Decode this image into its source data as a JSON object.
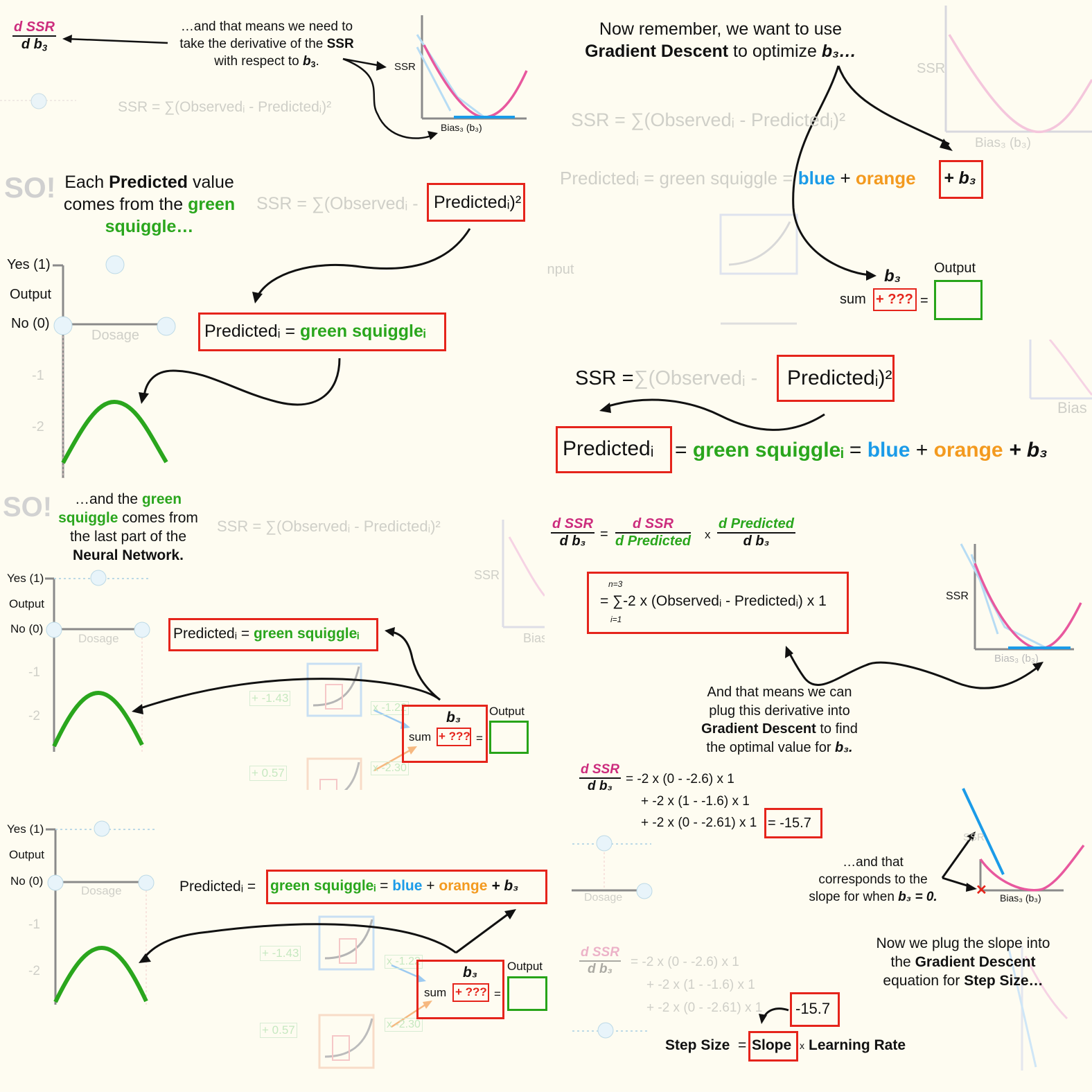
{
  "colors": {
    "background": "#fefcf1",
    "green": "#2aa61d",
    "blue": "#1b9be8",
    "orange": "#f39a1f",
    "magenta": "#cc2c7d",
    "red_box": "#e5241b"
  },
  "p1": {
    "frac_num": "d SSR",
    "frac_den": "d b",
    "text_line1": "…and that means we need to",
    "text_line2a": "take the derivative of the ",
    "text_line2b": "SSR",
    "text_line3a": "with respect to ",
    "text_line3b": "b",
    "text_line3c": ".",
    "ssr_label": "SSR",
    "bias_label": "Bias₃ (b₃)",
    "faint_eq": "SSR = ∑(Observedᵢ - Predictedᵢ)²"
  },
  "p2": {
    "title_line1a": "Now remember, we want to use",
    "title_line2a": "Gradient Descent",
    "title_line2b": " to optimize ",
    "title_line2c": "b₃…",
    "faint_ssr": "SSR",
    "faint_bias": "Bias₃ (b₃)",
    "faint_eq": "SSR = ∑(Observedᵢ - Predictedᵢ)²",
    "faint_pred": "Predictedᵢ = green squiggle",
    "eq_blue": "blue",
    "eq_plus": "+",
    "eq_orange": "orange",
    "eq_b3": "+ b₃",
    "faint_input": "Input",
    "b3": "b₃",
    "output": "Output",
    "sum": "sum",
    "q": "+ ???",
    "eq": "="
  },
  "p3": {
    "text1a": "Each ",
    "text1b": "Predicted",
    "text1c": " value",
    "text2a": "comes from the ",
    "text2b": "green",
    "text3": "squiggle…",
    "faint_eq": "SSR = ∑(Observedᵢ -",
    "box_pred": "Predictedᵢ)²",
    "yes": "Yes (1)",
    "output": "Output",
    "no": "No (0)",
    "dosage": "Dosage",
    "tick1": "-1",
    "tick2": "-2",
    "eq_pred": "Predictedᵢ = ",
    "eq_green": "green squiggleᵢ"
  },
  "p4": {
    "ssr": "SSR =",
    "faint_obs": "∑(Observedᵢ -",
    "box_pred": "Predictedᵢ)²",
    "box2": "Predictedᵢ",
    "eq_eq": "=",
    "eq_green": "green squiggleᵢ",
    "eq_blue": "blue",
    "eq_plus": "+",
    "eq_orange": "orange",
    "eq_b3": "+ b₃",
    "faint_bias": "Bias"
  },
  "p5": {
    "text1": "…and the ",
    "text1g": "green",
    "text2g": "squiggle",
    "text2": " comes from",
    "text3": "the last part of the",
    "text4": "Neural Network.",
    "faint_eq": "SSR = ∑(Observedᵢ - Predictedᵢ)²",
    "yes": "Yes (1)",
    "output": "Output",
    "no": "No (0)",
    "dosage": "Dosage",
    "tick1": "-1",
    "tick2": "-2",
    "eq_pred": "Predictedᵢ = ",
    "eq_green": "green squiggleᵢ",
    "faint_ssr": "SSR",
    "faint_bias": "Bias",
    "n1": "+ -1.43",
    "n2": "x -1.22",
    "n3": "+ 0.57",
    "n4": "x -2.30",
    "b3": "b₃",
    "sum": "sum",
    "q": "+ ???",
    "eq": "=",
    "out": "Output"
  },
  "p6": {
    "f1n": "d SSR",
    "f1d": "d b₃",
    "eq": "=",
    "f2n": "d SSR",
    "f2d": "d Predicted",
    "x": "x",
    "f3n": "d Predicted",
    "f3d": "d b₃",
    "sum_top": "n=3",
    "sum_bot": "i=1",
    "deriv": "= ∑-2 x (Observedᵢ - Predictedᵢ) x 1",
    "ssr": "SSR",
    "bias": "Bias₃ (b₃)",
    "t1": "And that means we can",
    "t2": "plug this derivative into",
    "t3a": "Gradient Descent",
    "t3b": " to find",
    "t4": "the optimal value for ",
    "t4b": "b₃."
  },
  "p7": {
    "yes": "Yes (1)",
    "output": "Output",
    "no": "No (0)",
    "dosage": "Dosage",
    "tick1": "-1",
    "tick2": "-2",
    "eq_pred": "Predictedᵢ = ",
    "eq_green": "green squiggleᵢ",
    "eq_eq": " = ",
    "eq_blue": "blue",
    "eq_plus": " + ",
    "eq_orange": "orange",
    "eq_b3": " + b₃",
    "n1": "+ -1.43",
    "n2": "x -1.22",
    "n3": "+ 0.57",
    "n4": "x -2.30",
    "b3": "b₃",
    "sum": "sum",
    "q": "+ ???",
    "eq": "=",
    "out": "Output"
  },
  "p8": {
    "fn": "d SSR",
    "fd": "d b₃",
    "l1": "= -2 x (0 - -2.6) x 1",
    "l2": "+ -2 x (1 - -1.6) x 1",
    "l3": "+ -2 x (0 - -2.61) x 1",
    "result": "= -15.7",
    "t1": "…and that",
    "t2": "corresponds to the",
    "t3a": "slope for when ",
    "t3b": "b₃ = 0.",
    "ssr": "SSR",
    "bias": "Bias₃ (b₃)",
    "dosage": "Dosage",
    "t4": "Now we plug the slope into",
    "t5a": "the ",
    "t5b": "Gradient Descent",
    "t6a": "equation for ",
    "t6b": "Step Size…",
    "f2n": "d SSR",
    "f2d": "d b₃",
    "f2l1": "= -2 x (0 - -2.6) x 1",
    "f2l2": "+ -2 x (1 - -1.6) x 1",
    "f2l3": "+ -2 x (0 - -2.61) x 1",
    "val": "-15.7",
    "ss1": "Step Size",
    "ss2": "=",
    "ss3": "Slope",
    "ss4": "x",
    "ss5": "Learning Rate"
  }
}
